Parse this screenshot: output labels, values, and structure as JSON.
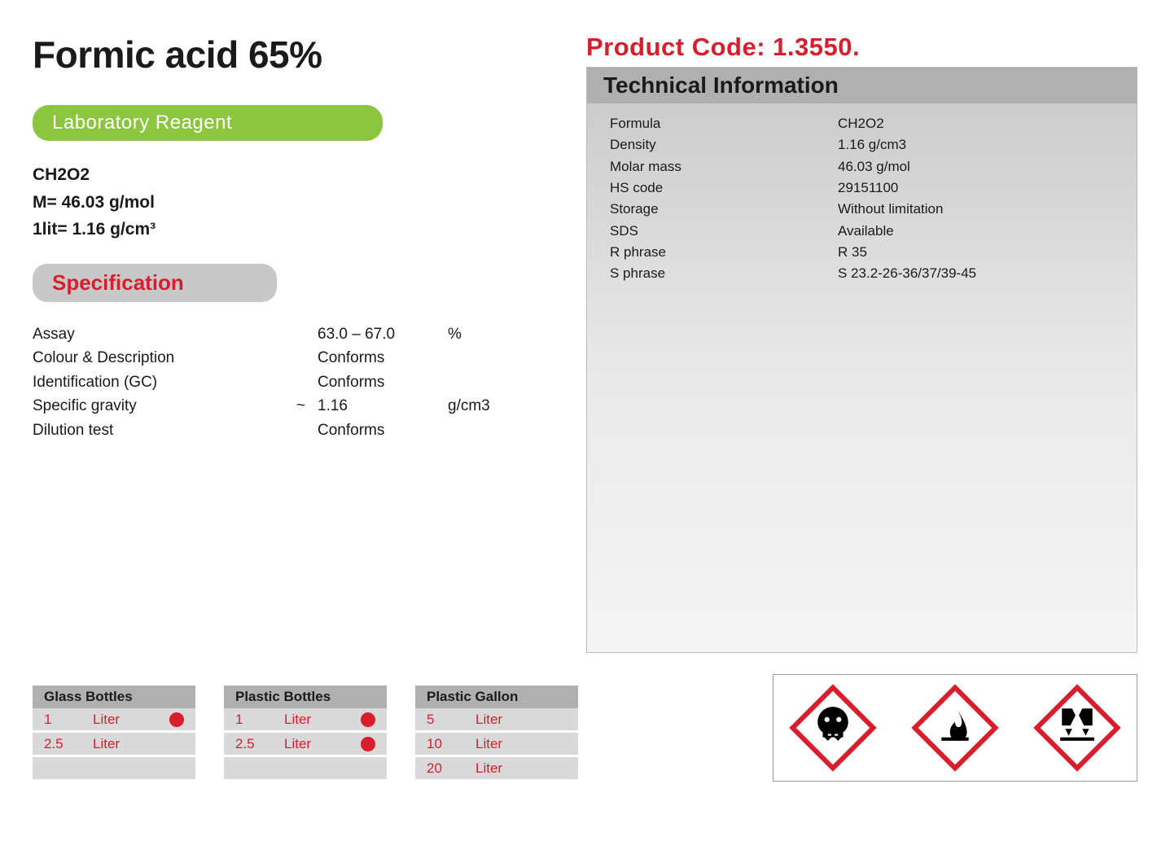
{
  "product": {
    "title": "Formic acid 65%",
    "badge": "Laboratory Reagent",
    "formula": "CH2O2",
    "molar_mass_line": "M= 46.03 g/mol",
    "density_line": "1lit= 1.16 g/cm³",
    "code_label": "Product Code: 1.3550."
  },
  "colors": {
    "accent_red": "#d81e2c",
    "badge_green": "#8cc63f",
    "header_gray": "#b0b0b0",
    "row_gray": "#d9d9d9",
    "panel_gray": "#c8c8c8"
  },
  "specification": {
    "header": "Specification",
    "rows": [
      {
        "label": "Assay",
        "tilde": "",
        "value": "63.0  – 67.0",
        "unit": "%"
      },
      {
        "label": "Colour & Description",
        "tilde": "",
        "value": "Conforms",
        "unit": ""
      },
      {
        "label": "Identification (GC)",
        "tilde": "",
        "value": "Conforms",
        "unit": ""
      },
      {
        "label": "Specific gravity",
        "tilde": "~",
        "value": "1.16",
        "unit": "g/cm3"
      },
      {
        "label": "Dilution test",
        "tilde": "",
        "value": "Conforms",
        "unit": ""
      }
    ]
  },
  "technical": {
    "header": "Technical Information",
    "rows": [
      {
        "label": "Formula",
        "value": "CH2O2"
      },
      {
        "label": "Density",
        "value": "1.16 g/cm3"
      },
      {
        "label": "Molar mass",
        "value": "46.03 g/mol"
      },
      {
        "label": "HS code",
        "value": "29151100"
      },
      {
        "label": "Storage",
        "value": "Without limitation"
      },
      {
        "label": "SDS",
        "value": "Available"
      },
      {
        "label": "R phrase",
        "value": "R 35"
      },
      {
        "label": "S phrase",
        "value": "S 23.2-26-36/37/39-45"
      }
    ]
  },
  "packaging": [
    {
      "title": "Glass Bottles",
      "rows": [
        {
          "qty": "1",
          "unit": "Liter",
          "dot": true
        },
        {
          "qty": "2.5",
          "unit": "Liter",
          "dot": false
        },
        {
          "qty": "",
          "unit": "",
          "dot": false
        }
      ]
    },
    {
      "title": "Plastic Bottles",
      "rows": [
        {
          "qty": "1",
          "unit": "Liter",
          "dot": true
        },
        {
          "qty": "2.5",
          "unit": "Liter",
          "dot": true
        },
        {
          "qty": "",
          "unit": "",
          "dot": false
        }
      ]
    },
    {
      "title": "Plastic Gallon",
      "rows": [
        {
          "qty": "5",
          "unit": "Liter",
          "dot": false
        },
        {
          "qty": "10",
          "unit": "Liter",
          "dot": false
        },
        {
          "qty": "20",
          "unit": "Liter",
          "dot": false
        }
      ]
    }
  ],
  "hazards": [
    {
      "name": "toxic",
      "label": "skull-crossbones-icon"
    },
    {
      "name": "flammable",
      "label": "flame-icon"
    },
    {
      "name": "corrosive",
      "label": "corrosion-icon"
    }
  ]
}
